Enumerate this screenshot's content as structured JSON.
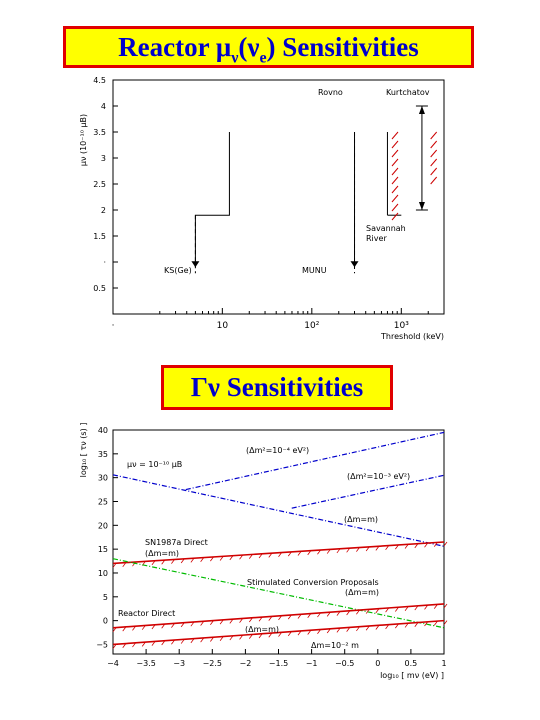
{
  "banners": {
    "top": {
      "prefix": "Reactor ",
      "mu": "μ",
      "nu": "ν",
      "open": "(",
      "nu2": "ν",
      "sub_e": "e",
      "close": ")",
      "suffix": " Sensitivities"
    },
    "bottom": "Γν Sensitivities"
  },
  "chart_data": [
    {
      "type": "line",
      "xlabel": "Threshold (keV)",
      "ylabel": "μν (10⁻¹⁰ μB)",
      "x_scale": "log",
      "xlim": [
        0.6,
        3000
      ],
      "ylim": [
        0,
        4.5
      ],
      "x_tick_labels": [
        {
          "value": 10,
          "label": "10"
        },
        {
          "value": 100,
          "label": "10²"
        },
        {
          "value": 1000,
          "label": "10³"
        },
        {
          "value": 0.6,
          "label": "·"
        }
      ],
      "y_ticks": [
        0.5,
        1,
        1.5,
        2,
        2.5,
        3,
        3.5,
        4,
        4.5
      ],
      "y_tick_labels": [
        "0.5",
        "·",
        "1.5",
        "2",
        "2.5",
        "3",
        "3.5",
        "4",
        "4.5"
      ],
      "series": [
        {
          "points": [
            [
              5,
              0.9
            ],
            [
              5,
              1.9
            ],
            [
              12,
              1.9
            ],
            [
              12,
              3.5
            ]
          ]
        },
        {
          "points": [
            [
              300,
              0.9
            ],
            [
              300,
              3.5
            ]
          ]
        },
        {
          "points": [
            [
              700,
              1.9
            ],
            [
              700,
              3.5
            ]
          ]
        },
        {
          "points": [
            [
              700,
              1.9
            ],
            [
              1000,
              1.9
            ]
          ]
        }
      ],
      "range_bar": {
        "x": 1700,
        "y": [
          2.0,
          4.0
        ]
      },
      "hatched_regions": [
        {
          "label_ref": "rovno",
          "x_center": 850,
          "y": [
            1.9,
            3.5
          ]
        },
        {
          "label_ref": "kurtchatov",
          "x_center": 2300,
          "y": [
            2.5,
            3.5
          ]
        }
      ],
      "annotations": {
        "rovno": "Rovno",
        "kurtchatov": "Kurtchatov",
        "savannah_1": "Savannah",
        "savannah_2": "River",
        "ks": "KS(Ge)",
        "munu": "MUNU"
      }
    },
    {
      "type": "line",
      "xlabel": "log₁₀ [ mν (eV) ]",
      "ylabel": "log₁₀ [ τν (s) ]",
      "xlim": [
        -4,
        1
      ],
      "ylim": [
        -7,
        40
      ],
      "x_ticks": [
        -4,
        -3.5,
        -3,
        -2.5,
        -2,
        -1.5,
        -1,
        -0.5,
        0,
        0.5,
        1
      ],
      "x_tick_labels": [
        "−4",
        "−3.5",
        "−3",
        "−2.5",
        "−2",
        "−1.5",
        "−1",
        "−0.5",
        "0",
        "0.5",
        "1"
      ],
      "y_ticks": [
        -5,
        0,
        5,
        10,
        15,
        20,
        25,
        30,
        35,
        40
      ],
      "y_tick_labels": [
        "−5",
        "0",
        "5",
        "10",
        "15",
        "20",
        "25",
        "30",
        "35",
        "40"
      ],
      "series": [
        {
          "color": "#0000cc",
          "style": "dashdot",
          "points": [
            [
              -2.9,
              27.5
            ],
            [
              1,
              39.5
            ]
          ]
        },
        {
          "color": "#0000cc",
          "style": "dashdot",
          "points": [
            [
              -1.3,
              23.6
            ],
            [
              1,
              30.5
            ]
          ]
        },
        {
          "color": "#0000cc",
          "style": "dashdot",
          "points": [
            [
              -4,
              30.6
            ],
            [
              1,
              15.6
            ]
          ]
        },
        {
          "color": "#d00000",
          "style": "solid",
          "hatched": true,
          "points": [
            [
              -4,
              12.0
            ],
            [
              1,
              16.5
            ]
          ]
        },
        {
          "color": "#00bb00",
          "style": "dashdot",
          "points": [
            [
              -4,
              13.0
            ],
            [
              1,
              -1.5
            ]
          ]
        },
        {
          "color": "#d00000",
          "style": "solid",
          "hatched": true,
          "points": [
            [
              -4,
              -1.5
            ],
            [
              1,
              3.5
            ]
          ]
        },
        {
          "color": "#d00000",
          "style": "solid",
          "hatched": true,
          "points": [
            [
              -4,
              -5.0
            ],
            [
              1,
              0
            ]
          ]
        }
      ],
      "annotations": {
        "mu_limit": "μν = 10⁻¹⁰ μB",
        "dm_m4": "(Δm²=10⁻⁴ eV²)",
        "dm_m3": "(Δm²=10⁻³ eV²)",
        "dm_eq_m_upper": "(Δm=m)",
        "sn_direct": "SN1987a Direct",
        "sn_dm": "(Δm=m)",
        "sim_conv": "Stimulated Conversion Proposals",
        "sim_dm": "(Δm=m)",
        "reactor_direct": "Reactor Direct",
        "reactor_dm": "(Δm=m)",
        "reactor_dm_low": "Δm=10⁻² m"
      }
    }
  ]
}
